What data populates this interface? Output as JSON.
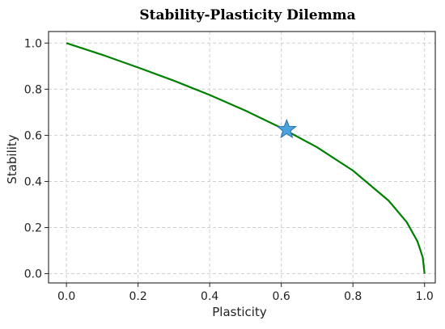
{
  "chart_data": {
    "type": "line",
    "title": "Stability-Plasticity Dilemma",
    "xlabel": "Plasticity",
    "ylabel": "Stability",
    "xlim": [
      -0.05,
      1.03
    ],
    "ylim": [
      -0.04,
      1.05
    ],
    "xticks": [
      "0.0",
      "0.2",
      "0.4",
      "0.6",
      "0.8",
      "1.0"
    ],
    "yticks": [
      "0.0",
      "0.2",
      "0.4",
      "0.6",
      "0.8",
      "1.0"
    ],
    "grid": true,
    "series": [
      {
        "color": "#008000",
        "x": [
          0.0,
          0.1,
          0.2,
          0.3,
          0.4,
          0.5,
          0.6,
          0.7,
          0.8,
          0.9,
          0.95,
          0.98,
          0.995,
          1.0
        ],
        "y": [
          1.0,
          0.949,
          0.894,
          0.837,
          0.775,
          0.707,
          0.632,
          0.548,
          0.447,
          0.316,
          0.224,
          0.141,
          0.071,
          0.0
        ]
      }
    ],
    "markers": [
      {
        "shape": "star",
        "x": 0.615,
        "y": 0.625,
        "color": "#4aa3df"
      }
    ]
  }
}
